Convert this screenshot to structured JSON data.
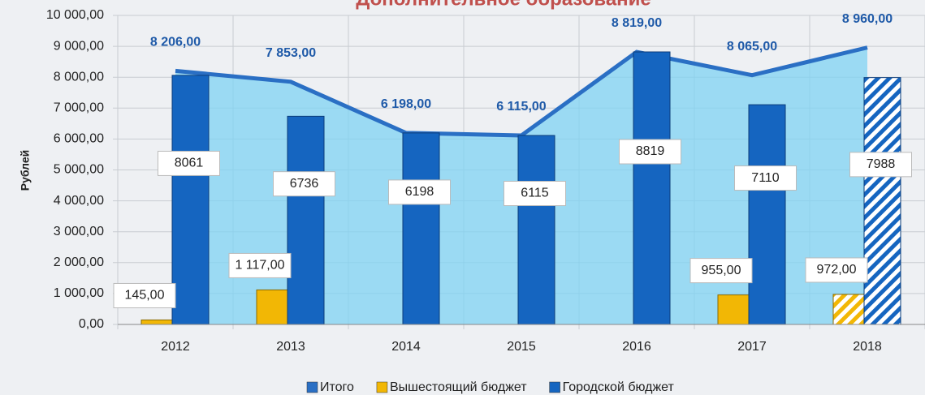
{
  "chart_data": {
    "type": "bar",
    "title": "Дополнительное образование",
    "y_label": "Рублей",
    "categories": [
      "2012",
      "2013",
      "2014",
      "2015",
      "2016",
      "2017",
      "2018"
    ],
    "series": [
      {
        "name": "Итого",
        "type": "area",
        "color": "#2a6fc4",
        "values": [
          8206,
          7853,
          6198,
          6115,
          8819,
          8065,
          8960
        ],
        "value_labels": [
          "8 206,00",
          "7 853,00",
          "6 198,00",
          "6 115,00",
          "8 819,00",
          "8 065,00",
          "8 960,00"
        ]
      },
      {
        "name": "Вышестоящий бюджет",
        "color": "#f2b705",
        "values": [
          145,
          1117,
          null,
          null,
          null,
          955,
          972
        ],
        "value_labels": [
          "145,00",
          "1 117,00",
          null,
          null,
          null,
          "955,00",
          "972,00"
        ]
      },
      {
        "name": "Городской бюджет",
        "color": "#1565c0",
        "values": [
          8061,
          6736,
          6198,
          6115,
          8819,
          7110,
          7988
        ]
      }
    ],
    "ylim": [
      0,
      10000
    ],
    "yticks": [
      {
        "value": 0,
        "label": "0,00"
      },
      {
        "value": 1000,
        "label": "1 000,00"
      },
      {
        "value": 2000,
        "label": "2 000,00"
      },
      {
        "value": 3000,
        "label": "3 000,00"
      },
      {
        "value": 4000,
        "label": "4 000,00"
      },
      {
        "value": 5000,
        "label": "5 000,00"
      },
      {
        "value": 6000,
        "label": "6 000,00"
      },
      {
        "value": 7000,
        "label": "7 000,00"
      },
      {
        "value": 8000,
        "label": "8 000,00"
      },
      {
        "value": 9000,
        "label": "9 000,00"
      },
      {
        "value": 10000,
        "label": "10 000,00"
      }
    ],
    "grid": true,
    "legend": "bottom"
  }
}
